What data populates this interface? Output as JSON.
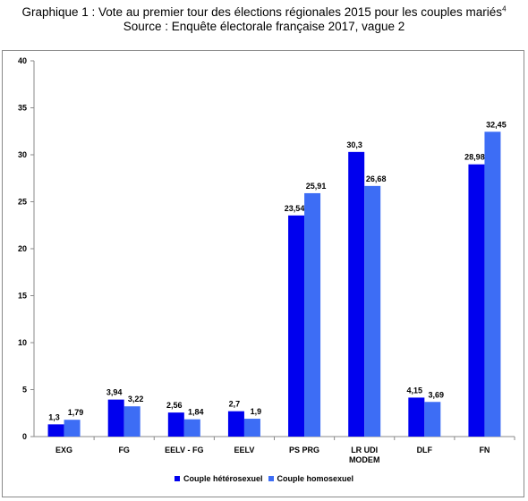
{
  "title": {
    "line1": "Graphique 1 : Vote au premier tour des élections régionales 2015 pour les couples mariés",
    "footnote": "4",
    "line2": "Source : Enquête électorale française 2017, vague 2"
  },
  "chart_data": {
    "type": "bar",
    "categories": [
      "EXG",
      "FG",
      "EELV - FG",
      "EELV",
      "PS PRG",
      "LR UDI MODEM",
      "DLF",
      "FN"
    ],
    "category_lines": [
      [
        "EXG"
      ],
      [
        "FG"
      ],
      [
        "EELV - FG"
      ],
      [
        "EELV"
      ],
      [
        "PS PRG"
      ],
      [
        "LR UDI",
        "MODEM"
      ],
      [
        "DLF"
      ],
      [
        "FN"
      ]
    ],
    "series": [
      {
        "name": "Couple hétérosexuel",
        "color": "#0000ee",
        "values": [
          1.3,
          3.94,
          2.56,
          2.7,
          23.54,
          30.3,
          4.15,
          28.98
        ],
        "labels": [
          "1,3",
          "3,94",
          "2,56",
          "2,7",
          "23,54",
          "30,3",
          "4,15",
          "28,98"
        ]
      },
      {
        "name": "Couple homosexuel",
        "color": "#3d6df5",
        "values": [
          1.79,
          3.22,
          1.84,
          1.9,
          25.91,
          26.68,
          3.69,
          32.45
        ],
        "labels": [
          "1,79",
          "3,22",
          "1,84",
          "1,9",
          "25,91",
          "26,68",
          "3,69",
          "32,45"
        ]
      }
    ],
    "yticks": [
      "0",
      "5",
      "10",
      "15",
      "20",
      "25",
      "30",
      "35",
      "40"
    ],
    "ylim": [
      0,
      40
    ],
    "grid": false,
    "legend_position": "bottom"
  }
}
